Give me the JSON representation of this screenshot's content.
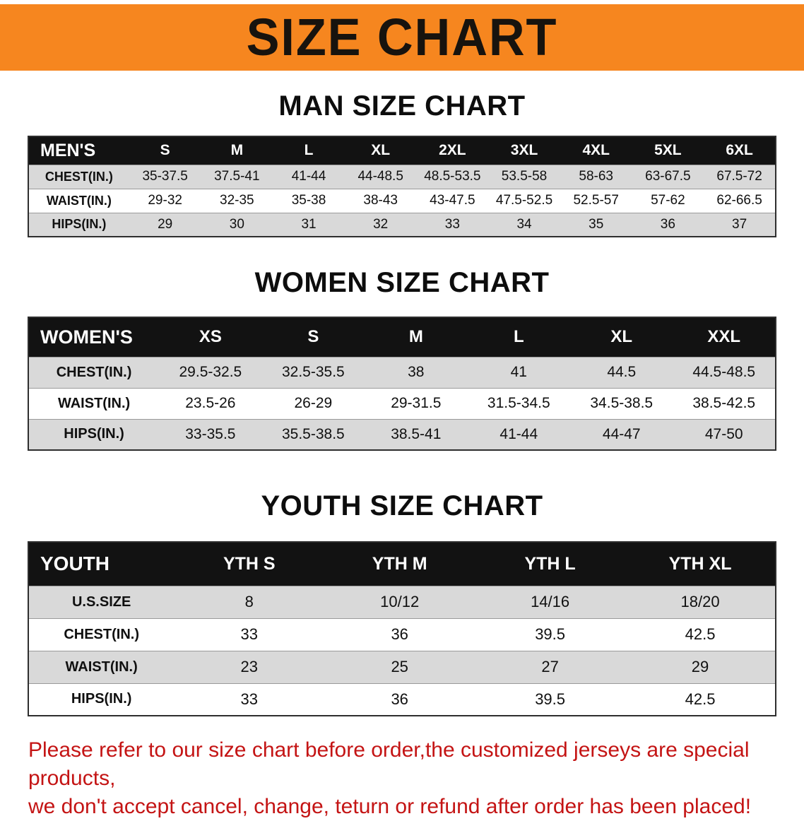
{
  "banner": {
    "title": "SIZE CHART"
  },
  "theme": {
    "banner_bg": "#F6861F",
    "banner_text": "#17130e",
    "table_header_bg": "#121212",
    "table_header_text": "#ffffff",
    "row_shaded_bg": "#d9d9d9",
    "note_color": "#c41414"
  },
  "sections": [
    {
      "heading": "MAN SIZE CHART",
      "table": {
        "header": [
          "MEN'S",
          "S",
          "M",
          "L",
          "XL",
          "2XL",
          "3XL",
          "4XL",
          "5XL",
          "6XL"
        ],
        "rows": [
          [
            "CHEST(IN.)",
            "35-37.5",
            "37.5-41",
            "41-44",
            "44-48.5",
            "48.5-53.5",
            "53.5-58",
            "58-63",
            "63-67.5",
            "67.5-72"
          ],
          [
            "WAIST(IN.)",
            "29-32",
            "32-35",
            "35-38",
            "38-43",
            "43-47.5",
            "47.5-52.5",
            "52.5-57",
            "57-62",
            "62-66.5"
          ],
          [
            "HIPS(IN.)",
            "29",
            "30",
            "31",
            "32",
            "33",
            "34",
            "35",
            "36",
            "37"
          ]
        ]
      }
    },
    {
      "heading": "WOMEN SIZE CHART",
      "table": {
        "header": [
          "WOMEN'S",
          "XS",
          "S",
          "M",
          "L",
          "XL",
          "XXL"
        ],
        "rows": [
          [
            "CHEST(IN.)",
            "29.5-32.5",
            "32.5-35.5",
            "38",
            "41",
            "44.5",
            "44.5-48.5"
          ],
          [
            "WAIST(IN.)",
            "23.5-26",
            "26-29",
            "29-31.5",
            "31.5-34.5",
            "34.5-38.5",
            "38.5-42.5"
          ],
          [
            "HIPS(IN.)",
            "33-35.5",
            "35.5-38.5",
            "38.5-41",
            "41-44",
            "44-47",
            "47-50"
          ]
        ]
      }
    },
    {
      "heading": "YOUTH SIZE CHART",
      "table": {
        "header": [
          "YOUTH",
          "YTH S",
          "YTH M",
          "YTH L",
          "YTH XL"
        ],
        "rows": [
          [
            "U.S.SIZE",
            "8",
            "10/12",
            "14/16",
            "18/20"
          ],
          [
            "CHEST(IN.)",
            "33",
            "36",
            "39.5",
            "42.5"
          ],
          [
            "WAIST(IN.)",
            "23",
            "25",
            "27",
            "29"
          ],
          [
            "HIPS(IN.)",
            "33",
            "36",
            "39.5",
            "42.5"
          ]
        ]
      }
    }
  ],
  "footer": {
    "line1": "Please refer to our size chart before order,the customized jerseys are special products,",
    "line2": "we don't accept cancel, change, teturn or refund after order has been placed!"
  }
}
